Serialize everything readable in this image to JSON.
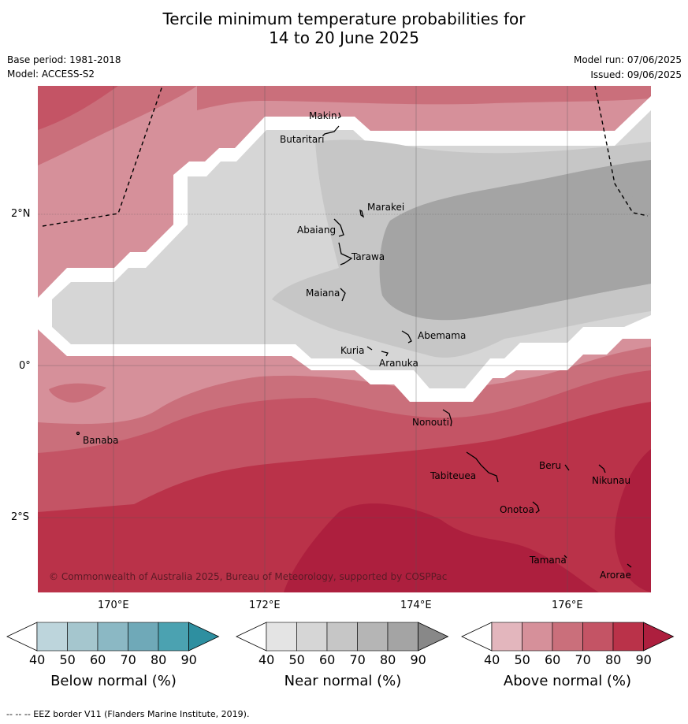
{
  "title_line1": "Tercile minimum temperature probabilities for",
  "title_line2": "14 to 20 June 2025",
  "meta": {
    "base_period": "Base period: 1981-2018",
    "model": "Model: ACCESS-S2",
    "model_run": "Model run: 07/06/2025",
    "issued": "Issued: 09/06/2025"
  },
  "map": {
    "lat_labels": [
      "2°N",
      "0°",
      "2°S"
    ],
    "lon_labels": [
      "170°E",
      "172°E",
      "174°E",
      "176°E"
    ],
    "copyright": "© Commonwealth of Australia 2025, Bureau of Meteorology, supported by COSPPac",
    "islands": [
      "Makin",
      "Butaritari",
      "Marakei",
      "Abaiang",
      "Tarawa",
      "Maiana",
      "Abemama",
      "Kuria",
      "Aranuka",
      "Nonouti",
      "Banaba",
      "Tabiteuea",
      "Beru",
      "Nikunau",
      "Onotoa",
      "Tamana",
      "Arorae"
    ]
  },
  "colorbars": [
    {
      "label": "Below normal (%)",
      "ticks": [
        "40",
        "50",
        "60",
        "70",
        "80",
        "90"
      ],
      "colors": [
        "#bdd5dc",
        "#a5c6ce",
        "#8bb8c4",
        "#6fa9b8",
        "#4ba2b1",
        "#2e8fa0"
      ]
    },
    {
      "label": "Near normal (%)",
      "ticks": [
        "40",
        "50",
        "60",
        "70",
        "80",
        "90"
      ],
      "colors": [
        "#e4e4e4",
        "#d6d6d6",
        "#c6c6c6",
        "#b5b5b5",
        "#a4a4a4",
        "#888888"
      ]
    },
    {
      "label": "Above normal (%)",
      "ticks": [
        "40",
        "50",
        "60",
        "70",
        "80",
        "90"
      ],
      "colors": [
        "#e3b6bd",
        "#d6909a",
        "#ca6f7b",
        "#c45465",
        "#ba3249",
        "#ad1f3e"
      ]
    }
  ],
  "footer": "--  --  -- EEZ border V11 (Flanders Marine Institute, 2019)."
}
